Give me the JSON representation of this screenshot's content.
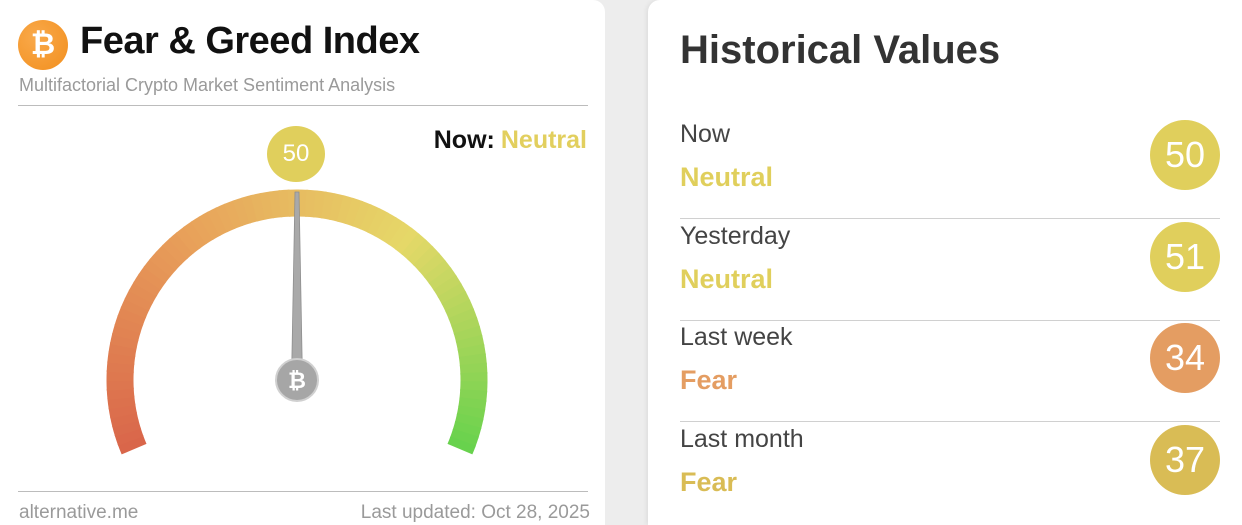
{
  "gauge": {
    "title": "Fear & Greed Index",
    "subtitle": "Multifactorial Crypto Market Sentiment Analysis",
    "logo_icon": "bitcoin-icon",
    "now_label": "Now:",
    "now_status": "Neutral",
    "value": "50",
    "value_number": 50,
    "scale": [
      0,
      100
    ],
    "colors": {
      "fear_extreme": "#d9654a",
      "fear": "#e8a05a",
      "neutral": "#e6d868",
      "greed": "#66d24c",
      "status": "#e2cf5e"
    },
    "footer_source": "alternative.me",
    "footer_updated": "Last updated: Oct 28, 2025"
  },
  "history": {
    "title": "Historical Values",
    "rows": [
      {
        "label": "Now",
        "status": "Neutral",
        "value": "50",
        "color": "#e0cf5c",
        "text_color": "#e0cf5c"
      },
      {
        "label": "Yesterday",
        "status": "Neutral",
        "value": "51",
        "color": "#e0cf5c",
        "text_color": "#e0cf5c"
      },
      {
        "label": "Last week",
        "status": "Fear",
        "value": "34",
        "color": "#e49d62",
        "text_color": "#e49d62"
      },
      {
        "label": "Last month",
        "status": "Fear",
        "value": "37",
        "color": "#d9bc55",
        "text_color": "#d9bc55"
      }
    ]
  }
}
